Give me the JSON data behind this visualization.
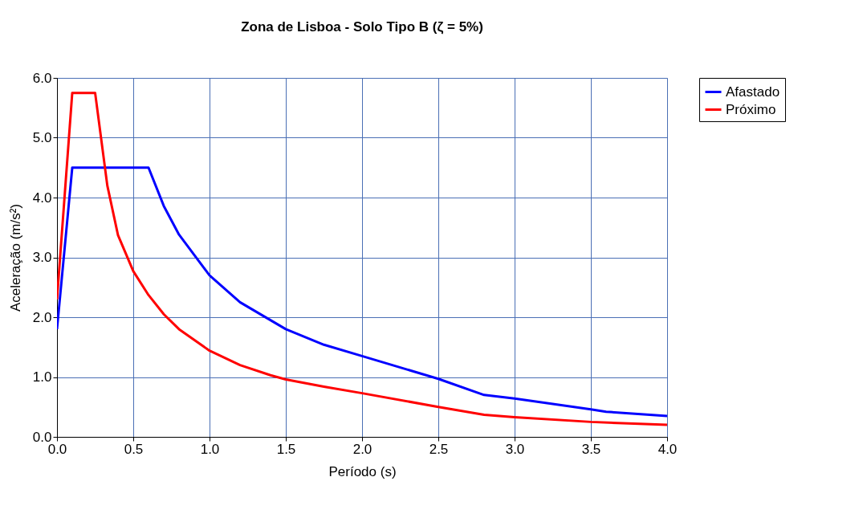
{
  "chart_data": {
    "type": "line",
    "title": "Zona de Lisboa - Solo Tipo B (ζ = 5%)",
    "xlabel": "Período (s)",
    "ylabel": "Aceleração (m/s²)",
    "xlim": [
      0,
      4
    ],
    "ylim": [
      0,
      6
    ],
    "xticks": [
      {
        "value": 0,
        "label": "0.0"
      },
      {
        "value": 0.5,
        "label": "0.5"
      },
      {
        "value": 1,
        "label": "1.0"
      },
      {
        "value": 1.5,
        "label": "1.5"
      },
      {
        "value": 2,
        "label": "2.0"
      },
      {
        "value": 2.5,
        "label": "2.5"
      },
      {
        "value": 3,
        "label": "3.0"
      },
      {
        "value": 3.5,
        "label": "3.5"
      },
      {
        "value": 4,
        "label": "4.0"
      }
    ],
    "yticks": [
      {
        "value": 0,
        "label": "0.0"
      },
      {
        "value": 1,
        "label": "1.0"
      },
      {
        "value": 2,
        "label": "2.0"
      },
      {
        "value": 3,
        "label": "3.0"
      },
      {
        "value": 4,
        "label": "4.0"
      },
      {
        "value": 5,
        "label": "5.0"
      },
      {
        "value": 6,
        "label": "6.0"
      }
    ],
    "grid": true,
    "legend": "right",
    "marker": "none",
    "line_style": "solid",
    "series": [
      {
        "name": "Afastado",
        "color": "#0000ff",
        "x": [
          0,
          0.1,
          0.6,
          0.7,
          0.8,
          1.0,
          1.2,
          1.5,
          1.75,
          2.0,
          2.5,
          2.8,
          3.0,
          3.5,
          3.6,
          4.0
        ],
        "values": [
          1.8,
          4.5,
          4.5,
          3.86,
          3.38,
          2.7,
          2.25,
          1.8,
          1.54,
          1.35,
          0.97,
          0.7,
          0.64,
          0.46,
          0.42,
          0.35
        ]
      },
      {
        "name": "Próximo",
        "color": "#ff0000",
        "x": [
          0,
          0.1,
          0.25,
          0.33,
          0.4,
          0.5,
          0.6,
          0.7,
          0.8,
          1.0,
          1.2,
          1.4,
          1.5,
          1.75,
          2.0,
          2.5,
          2.8,
          3.0,
          3.5,
          4.0
        ],
        "values": [
          2.3,
          5.75,
          5.75,
          4.2,
          3.37,
          2.77,
          2.37,
          2.05,
          1.8,
          1.44,
          1.2,
          1.03,
          0.96,
          0.84,
          0.73,
          0.5,
          0.37,
          0.33,
          0.25,
          0.2
        ]
      }
    ]
  }
}
